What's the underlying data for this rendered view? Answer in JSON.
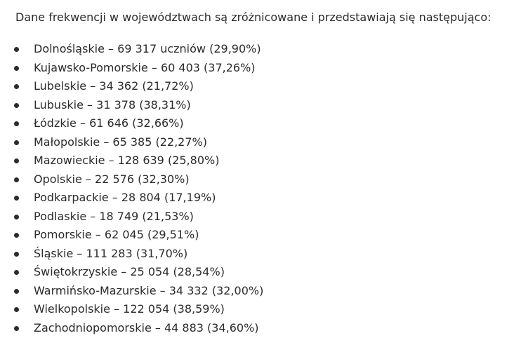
{
  "intro": "Dane frekwencji w województwach są zróżnicowane i przedstawiają się następująco:",
  "items": [
    "Dolnośląskie – 69 317 uczniów (29,90%)",
    "Kujawsko-Pomorskie – 60 403 (37,26%)",
    "Lubelskie – 34 362 (21,72%)",
    "Lubuskie – 31 378 (38,31%)",
    "Łódzkie – 61 646 (32,66%)",
    "Małopolskie – 65 385 (22,27%)",
    "Mazowieckie – 128 639 (25,80%)",
    "Opolskie – 22 576 (32,30%)",
    "Podkarpackie – 28 804 (17,19%)",
    "Podlaskie – 18 749 (21,53%)",
    "Pomorskie – 62 045 (29,51%)",
    "Śląskie – 111 283 (31,70%)",
    "Świętokrzyskie – 25 054 (28,54%)",
    "Warmińsko-Mazurskie – 34 332 (32,00%)",
    "Wielkopolskie – 122 054 (38,59%)",
    "Zachodniopomorskie – 44 883 (34,60%)"
  ]
}
